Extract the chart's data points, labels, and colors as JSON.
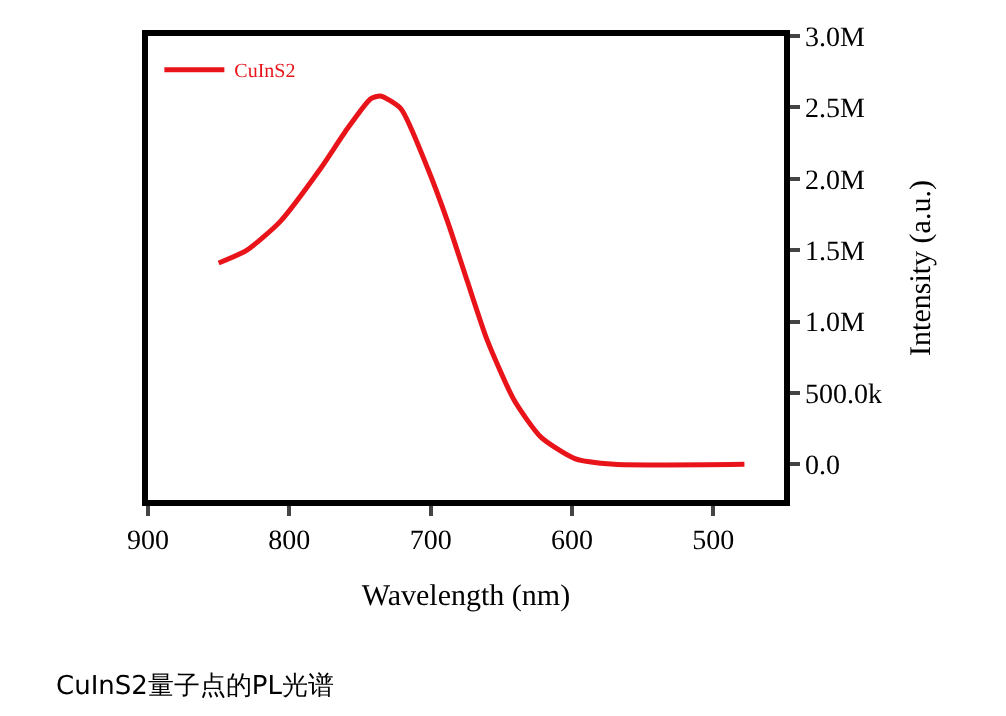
{
  "chart_data": {
    "type": "line",
    "xlabel": "Wavelength (nm)",
    "ylabel": "Intensity (a.u.)",
    "x": [
      850,
      830,
      806.5,
      778,
      759,
      742.5,
      735.5,
      721,
      702,
      688,
      674,
      660,
      641,
      622,
      598,
      570,
      478
    ],
    "series": [
      {
        "name": "CuInS2",
        "color": "#e8141a",
        "values": [
          1410000,
          1500000,
          1700000,
          2070000,
          2350000,
          2560000,
          2580000,
          2490000,
          2070000,
          1700000,
          1280000,
          870000,
          450000,
          190000,
          40000,
          0,
          0
        ]
      }
    ],
    "xlim": [
      900,
      450
    ],
    "xticks": [
      900,
      800,
      700,
      600,
      500
    ],
    "ylim": [
      -250000,
      3000000
    ],
    "yticks": [
      {
        "value": 0,
        "label": "0.0"
      },
      {
        "value": 500000,
        "label": "500.0k"
      },
      {
        "value": 1000000,
        "label": "1.0M"
      },
      {
        "value": 1500000,
        "label": "1.5M"
      },
      {
        "value": 2000000,
        "label": "2.0M"
      },
      {
        "value": 2500000,
        "label": "2.5M"
      },
      {
        "value": 3000000,
        "label": "3.0M"
      }
    ],
    "legend": "top left",
    "marker": "none",
    "line_style": "solid",
    "annotations": [
      "CuInS2量子点的PL光谱"
    ]
  }
}
